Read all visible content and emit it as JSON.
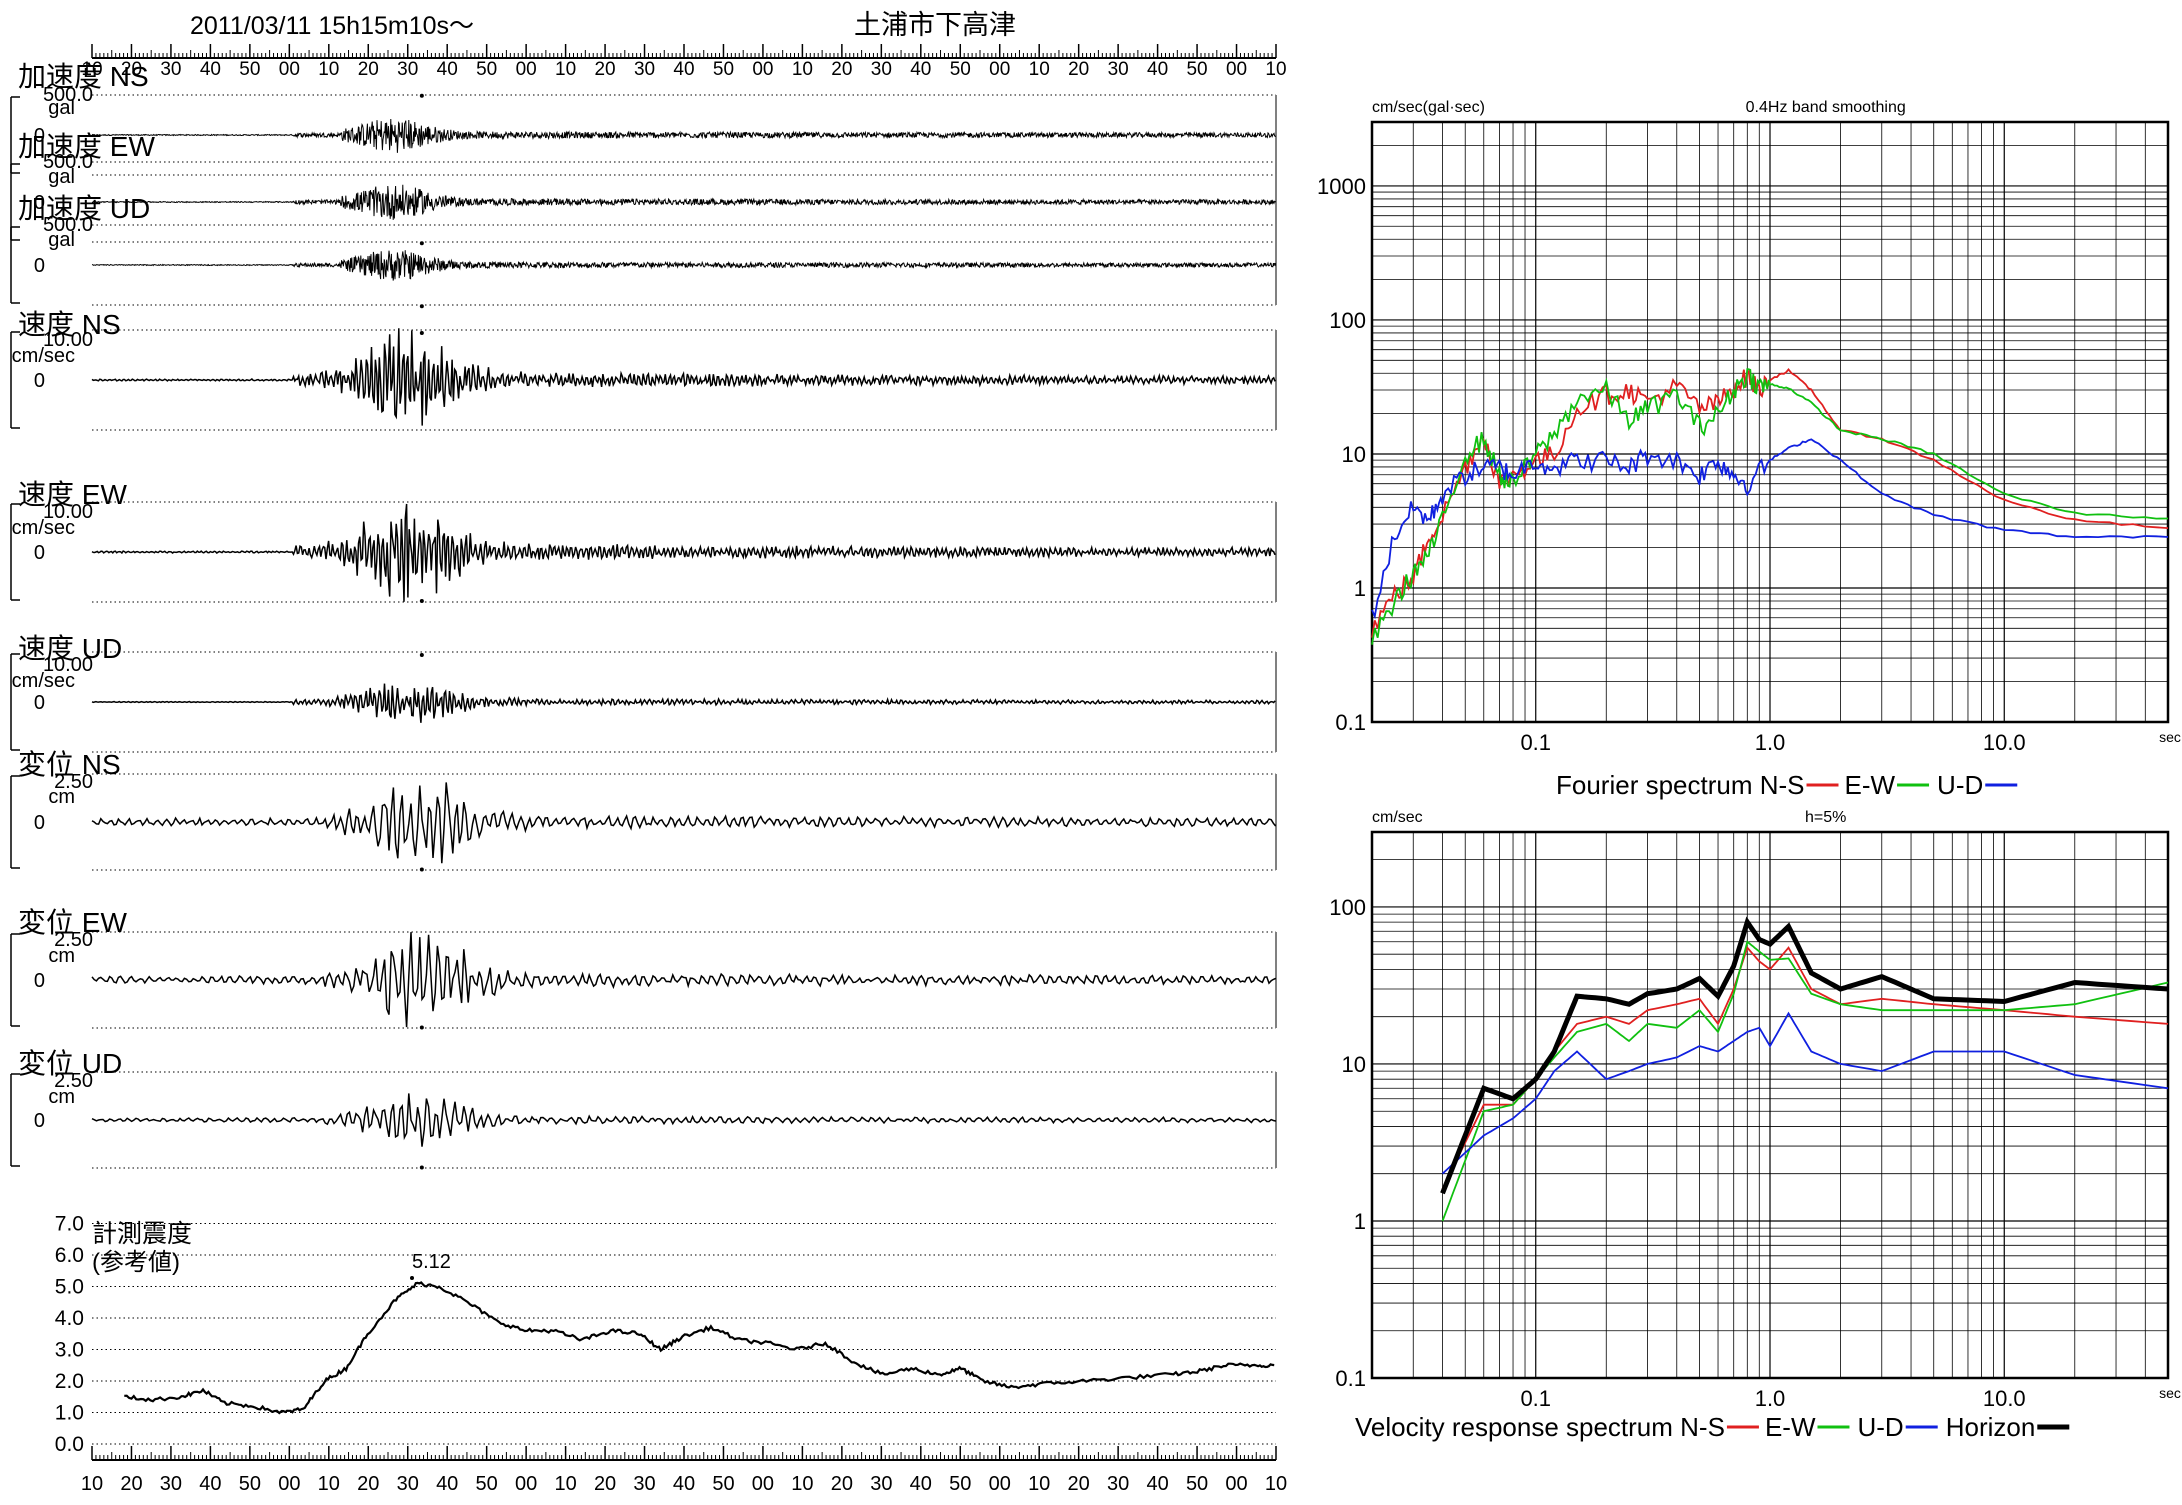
{
  "header": {
    "datetime": "2011/03/11  15h15m10s〜",
    "station": "土浦市下高津"
  },
  "time_axis": {
    "top_labels": [
      "10",
      "20",
      "30",
      "40",
      "50",
      "00",
      "10",
      "20",
      "30",
      "40",
      "50",
      "00",
      "10",
      "20",
      "30",
      "40",
      "50",
      "00",
      "10",
      "20",
      "30",
      "40",
      "50",
      "00",
      "10",
      "20",
      "30",
      "40",
      "50",
      "00",
      "10"
    ],
    "bottom_labels": [
      "10",
      "20",
      "30",
      "40",
      "50",
      "00",
      "10",
      "20",
      "30",
      "40",
      "50",
      "00",
      "10",
      "20",
      "30",
      "40",
      "50",
      "00",
      "10",
      "20",
      "30",
      "40",
      "50",
      "00",
      "10",
      "20",
      "30",
      "40",
      "50",
      "00",
      "10"
    ]
  },
  "traces": [
    {
      "label": "加速度 NS",
      "scale": "500.0",
      "unit": "gal",
      "zero": "0",
      "kind": "acc",
      "amp": 0.45,
      "peak_dir": "up"
    },
    {
      "label": "加速度 EW",
      "scale": "500.0",
      "unit": "gal",
      "zero": "0",
      "kind": "acc",
      "amp": 0.45,
      "peak_dir": "down"
    },
    {
      "label": "加速度 UD",
      "scale": "500.0",
      "unit": "gal",
      "zero": "0",
      "kind": "acc",
      "amp": 0.4,
      "peak_dir": "down"
    },
    {
      "label": "速度 NS",
      "scale": "10.00",
      "unit": "cm/sec",
      "zero": "0",
      "kind": "vel",
      "amp": 1.0,
      "peak_dir": "up"
    },
    {
      "label": "速度 EW",
      "scale": "10.00",
      "unit": "cm/sec",
      "zero": "0",
      "kind": "vel",
      "amp": 1.05,
      "peak_dir": "down"
    },
    {
      "label": "速度 UD",
      "scale": "10.00",
      "unit": "cm/sec",
      "zero": "0",
      "kind": "vel",
      "amp": 0.45,
      "peak_dir": "up"
    },
    {
      "label": "変位 NS",
      "scale": "2.50",
      "unit": "cm",
      "zero": "0",
      "kind": "disp",
      "amp": 1.05,
      "peak_dir": "down"
    },
    {
      "label": "変位 EW",
      "scale": "2.50",
      "unit": "cm",
      "zero": "0",
      "kind": "disp",
      "amp": 1.05,
      "peak_dir": "down"
    },
    {
      "label": "変位 UD",
      "scale": "2.50",
      "unit": "cm",
      "zero": "0",
      "kind": "disp",
      "amp": 0.6,
      "peak_dir": "down"
    }
  ],
  "intensity": {
    "title_line1": "計測震度",
    "title_line2": "(参考値)",
    "peak_label": "5.12",
    "ticks": [
      "7.0",
      "6.0",
      "5.0",
      "4.0",
      "3.0",
      "2.0",
      "1.0",
      "0.0"
    ]
  },
  "chart_data": [
    {
      "type": "line",
      "title": "0.4Hz band smoothing",
      "ylabel": "cm/sec(gal·sec)",
      "xlabel": "sec",
      "x_scale": "log",
      "y_scale": "log",
      "xlim": [
        0.02,
        50
      ],
      "ylim": [
        0.1,
        3000
      ],
      "x_ticks": [
        "0.1",
        "1.0",
        "10.0"
      ],
      "y_ticks": [
        "0.1",
        "1",
        "10",
        "100",
        "1000"
      ],
      "caption": "Fourier spectrum  N-S",
      "legend_labels": [
        "E-W",
        "U-D"
      ],
      "legend_placement": "bottom",
      "series": [
        {
          "name": "N-S",
          "color": "#e02020",
          "x": [
            0.02,
            0.025,
            0.03,
            0.035,
            0.04,
            0.05,
            0.06,
            0.07,
            0.08,
            0.1,
            0.12,
            0.15,
            0.2,
            0.25,
            0.3,
            0.4,
            0.5,
            0.6,
            0.7,
            0.8,
            0.9,
            1.0,
            1.2,
            1.5,
            2.0,
            3.0,
            5.0,
            10,
            20,
            50
          ],
          "y": [
            0.5,
            0.9,
            1.2,
            2.4,
            3.5,
            8,
            14,
            6,
            7,
            9,
            10,
            22,
            28,
            30,
            25,
            32,
            22,
            24,
            32,
            38,
            30,
            36,
            42,
            30,
            15,
            13,
            9,
            4.5,
            3.2,
            2.8
          ]
        },
        {
          "name": "E-W",
          "color": "#10c010",
          "x": [
            0.02,
            0.025,
            0.03,
            0.035,
            0.04,
            0.05,
            0.06,
            0.07,
            0.08,
            0.1,
            0.12,
            0.15,
            0.2,
            0.25,
            0.3,
            0.4,
            0.5,
            0.6,
            0.7,
            0.8,
            0.9,
            1.0,
            1.2,
            1.5,
            2.0,
            3.0,
            5.0,
            10,
            20,
            50
          ],
          "y": [
            0.4,
            0.8,
            1.3,
            1.8,
            3.2,
            10,
            13,
            7,
            6,
            10,
            14,
            26,
            30,
            18,
            22,
            28,
            16,
            20,
            30,
            40,
            32,
            33,
            31,
            24,
            15,
            13,
            10,
            5,
            3.6,
            3.3
          ]
        },
        {
          "name": "U-D",
          "color": "#1020e0",
          "x": [
            0.02,
            0.025,
            0.03,
            0.035,
            0.04,
            0.05,
            0.06,
            0.07,
            0.08,
            0.1,
            0.12,
            0.15,
            0.2,
            0.25,
            0.3,
            0.4,
            0.5,
            0.6,
            0.7,
            0.8,
            1.0,
            1.2,
            1.5,
            2.0,
            3.0,
            5.0,
            10,
            20,
            50
          ],
          "y": [
            0.6,
            2.5,
            4,
            3.2,
            5,
            7,
            8,
            8,
            7,
            9,
            8,
            9,
            9,
            8,
            10,
            9,
            7,
            9,
            7,
            6,
            9,
            11,
            13,
            9,
            5,
            3.5,
            2.7,
            2.4,
            2.4
          ]
        }
      ]
    },
    {
      "type": "line",
      "title": "h=5%",
      "ylabel": "cm/sec",
      "xlabel": "sec",
      "x_scale": "log",
      "y_scale": "log",
      "xlim": [
        0.02,
        50
      ],
      "ylim": [
        0.1,
        300
      ],
      "x_ticks": [
        "0.1",
        "1.0",
        "10.0"
      ],
      "y_ticks": [
        "0.1",
        "1",
        "10",
        "100"
      ],
      "caption": "Velocity response spectrum N-S",
      "legend_labels": [
        "E-W",
        "U-D",
        "Horizon"
      ],
      "legend_placement": "bottom",
      "series": [
        {
          "name": "N-S",
          "color": "#e02020",
          "x": [
            0.04,
            0.06,
            0.08,
            0.1,
            0.12,
            0.15,
            0.2,
            0.25,
            0.3,
            0.4,
            0.5,
            0.6,
            0.7,
            0.8,
            0.9,
            1.0,
            1.2,
            1.5,
            2.0,
            3.0,
            5.0,
            10,
            20,
            50
          ],
          "y": [
            1.6,
            5.5,
            5.5,
            8,
            12,
            18,
            20,
            18,
            22,
            24,
            26,
            18,
            30,
            55,
            45,
            40,
            55,
            30,
            24,
            26,
            24,
            22,
            20,
            18
          ]
        },
        {
          "name": "E-W",
          "color": "#10c010",
          "x": [
            0.04,
            0.06,
            0.08,
            0.1,
            0.12,
            0.15,
            0.2,
            0.25,
            0.3,
            0.4,
            0.5,
            0.6,
            0.7,
            0.8,
            0.9,
            1.0,
            1.2,
            1.5,
            2.0,
            3.0,
            5.0,
            10,
            20,
            50
          ],
          "y": [
            1.0,
            5,
            5.5,
            8,
            11,
            16,
            18,
            14,
            18,
            17,
            22,
            16,
            28,
            60,
            52,
            46,
            47,
            28,
            24,
            22,
            22,
            22,
            24,
            33
          ]
        },
        {
          "name": "U-D",
          "color": "#1020e0",
          "x": [
            0.04,
            0.06,
            0.08,
            0.1,
            0.12,
            0.15,
            0.2,
            0.25,
            0.3,
            0.4,
            0.5,
            0.6,
            0.7,
            0.8,
            0.9,
            1.0,
            1.2,
            1.5,
            2.0,
            3.0,
            5.0,
            10,
            20,
            50
          ],
          "y": [
            2,
            3.5,
            4.5,
            6,
            9,
            12,
            8,
            9,
            10,
            11,
            13,
            12,
            14,
            16,
            17,
            13,
            21,
            12,
            10,
            9,
            12,
            12,
            8.5,
            7
          ]
        },
        {
          "name": "Horizon",
          "color": "#000000",
          "x": [
            0.04,
            0.06,
            0.08,
            0.1,
            0.12,
            0.15,
            0.2,
            0.25,
            0.3,
            0.4,
            0.5,
            0.6,
            0.7,
            0.8,
            0.9,
            1.0,
            1.2,
            1.5,
            2.0,
            3.0,
            5.0,
            10,
            20,
            50
          ],
          "y": [
            1.5,
            7,
            6,
            8,
            12,
            27,
            26,
            24,
            28,
            30,
            35,
            27,
            42,
            80,
            62,
            58,
            75,
            38,
            30,
            36,
            26,
            25,
            33,
            30
          ]
        }
      ]
    }
  ]
}
